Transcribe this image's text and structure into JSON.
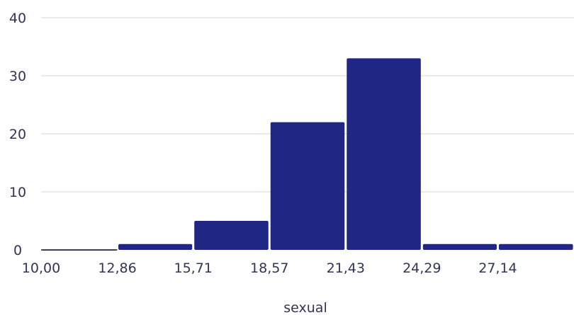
{
  "chart_data": {
    "type": "bar",
    "xlabel": "sexual",
    "ylabel": "",
    "ylim": [
      0,
      40
    ],
    "xlim": [
      10.0,
      30.0
    ],
    "bin_edges": [
      10.0,
      12.86,
      15.71,
      18.57,
      21.43,
      24.29,
      27.14,
      30.0
    ],
    "values": [
      0,
      1,
      5,
      22,
      33,
      1,
      1
    ],
    "y_ticks": [
      {
        "value": 0,
        "label": "0"
      },
      {
        "value": 10,
        "label": "10"
      },
      {
        "value": 20,
        "label": "20"
      },
      {
        "value": 30,
        "label": "30"
      },
      {
        "value": 40,
        "label": "40"
      }
    ],
    "x_ticks": [
      {
        "value": 10.0,
        "label": "10,00"
      },
      {
        "value": 12.86,
        "label": "12,86"
      },
      {
        "value": 15.71,
        "label": "15,71"
      },
      {
        "value": 18.57,
        "label": "18,57"
      },
      {
        "value": 21.43,
        "label": "21,43"
      },
      {
        "value": 24.29,
        "label": "24,29"
      },
      {
        "value": 27.14,
        "label": "27,14"
      }
    ],
    "grid": true,
    "bar_color": "#1f2683",
    "grid_color": "#d6d6d6",
    "text_color": "#333355"
  }
}
